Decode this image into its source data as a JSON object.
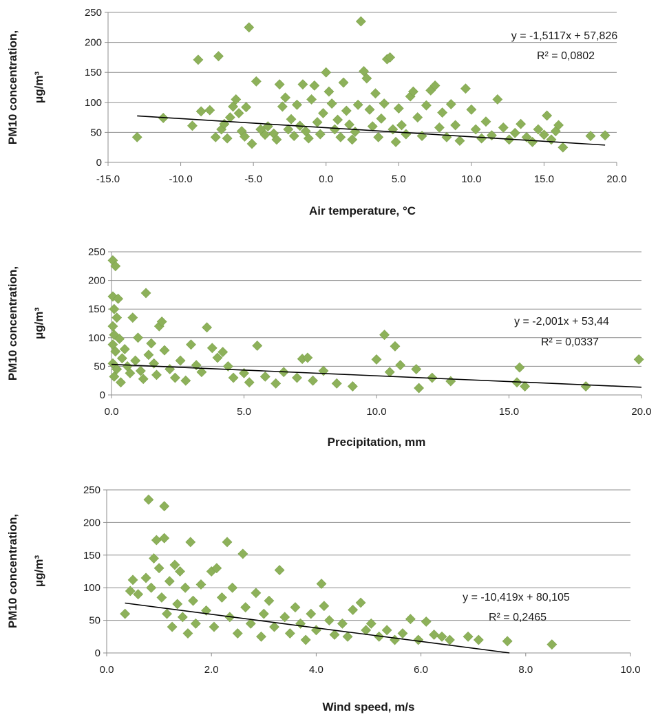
{
  "chart_data": [
    {
      "type": "scatter",
      "title": "",
      "xlabel": "Air temperature, °C",
      "ylabel_line1": "PM10 concentration,",
      "ylabel_line2": "μg/m³",
      "xlim": [
        -15,
        20
      ],
      "ylim": [
        0,
        250
      ],
      "x_ticks": [
        -15,
        -10,
        -5,
        0,
        5,
        10,
        15,
        20
      ],
      "x_tick_labels": [
        "-15.0",
        "-10.0",
        "-5.0",
        "0.0",
        "5.0",
        "10.0",
        "15.0",
        "20.0"
      ],
      "y_ticks": [
        0,
        50,
        100,
        150,
        200,
        250
      ],
      "y_tick_labels": [
        "0",
        "50",
        "100",
        "150",
        "200",
        "250"
      ],
      "grid": "horizontal",
      "marker_color": "#8db15a",
      "trendline": {
        "slope": -1.5117,
        "intercept": 57.826,
        "x_range": [
          -13.0,
          19.2
        ]
      },
      "equation": "y = -1,5117x + 57,826",
      "r_squared": "R² = 0,0802",
      "points": [
        [
          -13,
          42
        ],
        [
          -11.2,
          74
        ],
        [
          -9.2,
          61
        ],
        [
          -8.8,
          171
        ],
        [
          -8.6,
          85
        ],
        [
          -8,
          87
        ],
        [
          -7.6,
          42
        ],
        [
          -7.4,
          177
        ],
        [
          -7.2,
          55
        ],
        [
          -7,
          64
        ],
        [
          -6.8,
          40
        ],
        [
          -6.6,
          75
        ],
        [
          -6.4,
          93
        ],
        [
          -6.2,
          105
        ],
        [
          -6,
          82
        ],
        [
          -5.8,
          52
        ],
        [
          -5.6,
          43
        ],
        [
          -5.5,
          92
        ],
        [
          -5.3,
          225
        ],
        [
          -5.1,
          31
        ],
        [
          -4.8,
          135
        ],
        [
          -4.5,
          55
        ],
        [
          -4.2,
          46
        ],
        [
          -4,
          60
        ],
        [
          -3.6,
          48
        ],
        [
          -3.4,
          38
        ],
        [
          -3.2,
          130
        ],
        [
          -3,
          93
        ],
        [
          -2.8,
          108
        ],
        [
          -2.6,
          55
        ],
        [
          -2.4,
          72
        ],
        [
          -2.2,
          44
        ],
        [
          -2,
          96
        ],
        [
          -1.8,
          61
        ],
        [
          -1.6,
          130
        ],
        [
          -1.4,
          52
        ],
        [
          -1.2,
          40
        ],
        [
          -1,
          105
        ],
        [
          -0.8,
          128
        ],
        [
          -0.6,
          67
        ],
        [
          -0.4,
          47
        ],
        [
          -0.2,
          82
        ],
        [
          0,
          150
        ],
        [
          0.2,
          118
        ],
        [
          0.4,
          98
        ],
        [
          0.6,
          55
        ],
        [
          0.8,
          71
        ],
        [
          1,
          42
        ],
        [
          1.2,
          133
        ],
        [
          1.4,
          86
        ],
        [
          1.6,
          63
        ],
        [
          1.8,
          38
        ],
        [
          2,
          51
        ],
        [
          2.2,
          96
        ],
        [
          2.4,
          235
        ],
        [
          2.6,
          152
        ],
        [
          2.8,
          140
        ],
        [
          3,
          88
        ],
        [
          3.2,
          60
        ],
        [
          3.4,
          115
        ],
        [
          3.6,
          42
        ],
        [
          3.8,
          73
        ],
        [
          4,
          98
        ],
        [
          4.2,
          172
        ],
        [
          4.4,
          175
        ],
        [
          4.6,
          55
        ],
        [
          4.8,
          34
        ],
        [
          5,
          90
        ],
        [
          5.2,
          62
        ],
        [
          5.5,
          47
        ],
        [
          5.8,
          110
        ],
        [
          6,
          118
        ],
        [
          6.3,
          75
        ],
        [
          6.6,
          44
        ],
        [
          6.9,
          95
        ],
        [
          7.2,
          120
        ],
        [
          7.5,
          128
        ],
        [
          7.8,
          58
        ],
        [
          8,
          83
        ],
        [
          8.3,
          42
        ],
        [
          8.6,
          97
        ],
        [
          8.9,
          62
        ],
        [
          9.2,
          36
        ],
        [
          9.6,
          123
        ],
        [
          10,
          88
        ],
        [
          10.3,
          55
        ],
        [
          10.7,
          40
        ],
        [
          11,
          68
        ],
        [
          11.4,
          45
        ],
        [
          11.8,
          105
        ],
        [
          12.2,
          58
        ],
        [
          12.6,
          38
        ],
        [
          13,
          49
        ],
        [
          13.4,
          64
        ],
        [
          13.8,
          42
        ],
        [
          14.2,
          34
        ],
        [
          14.6,
          55
        ],
        [
          15,
          46
        ],
        [
          15.2,
          78
        ],
        [
          15.5,
          38
        ],
        [
          15.8,
          52
        ],
        [
          16,
          62
        ],
        [
          16.3,
          25
        ],
        [
          18.2,
          44
        ],
        [
          19.2,
          45
        ]
      ]
    },
    {
      "type": "scatter",
      "title": "",
      "xlabel": "Precipitation, mm",
      "ylabel_line1": "PM10 concentration,",
      "ylabel_line2": "μg/m³",
      "xlim": [
        0,
        20
      ],
      "ylim": [
        0,
        250
      ],
      "x_ticks": [
        0,
        5,
        10,
        15,
        20
      ],
      "x_tick_labels": [
        "0.0",
        "5.0",
        "10.0",
        "15.0",
        "20.0"
      ],
      "y_ticks": [
        0,
        50,
        100,
        150,
        200,
        250
      ],
      "y_tick_labels": [
        "0",
        "50",
        "100",
        "150",
        "200",
        "250"
      ],
      "grid": "horizontal",
      "marker_color": "#8db15a",
      "trendline": {
        "slope": -2.001,
        "intercept": 53.44,
        "x_range": [
          0,
          20
        ]
      },
      "equation": "y = -2,001x + 53,44",
      "r_squared": "R² = 0,0337",
      "points": [
        [
          0.05,
          235
        ],
        [
          0.15,
          225
        ],
        [
          0.05,
          172
        ],
        [
          0.25,
          168
        ],
        [
          0.1,
          150
        ],
        [
          0.2,
          135
        ],
        [
          0.05,
          120
        ],
        [
          0.1,
          105
        ],
        [
          0.3,
          98
        ],
        [
          0.05,
          88
        ],
        [
          0.15,
          76
        ],
        [
          0.4,
          64
        ],
        [
          0.05,
          55
        ],
        [
          0.2,
          45
        ],
        [
          0.1,
          32
        ],
        [
          0.35,
          22
        ],
        [
          0.5,
          80
        ],
        [
          0.6,
          50
        ],
        [
          0.7,
          38
        ],
        [
          0.8,
          135
        ],
        [
          0.9,
          60
        ],
        [
          1,
          100
        ],
        [
          1.1,
          42
        ],
        [
          1.2,
          28
        ],
        [
          1.3,
          178
        ],
        [
          1.4,
          70
        ],
        [
          1.5,
          90
        ],
        [
          1.6,
          55
        ],
        [
          1.7,
          35
        ],
        [
          1.8,
          120
        ],
        [
          1.9,
          128
        ],
        [
          2,
          78
        ],
        [
          2.2,
          45
        ],
        [
          2.4,
          30
        ],
        [
          2.6,
          60
        ],
        [
          2.8,
          25
        ],
        [
          3,
          88
        ],
        [
          3.2,
          52
        ],
        [
          3.4,
          40
        ],
        [
          3.6,
          118
        ],
        [
          3.8,
          82
        ],
        [
          4,
          65
        ],
        [
          4.2,
          75
        ],
        [
          4.4,
          50
        ],
        [
          4.6,
          30
        ],
        [
          5,
          38
        ],
        [
          5.2,
          22
        ],
        [
          5.5,
          86
        ],
        [
          5.8,
          32
        ],
        [
          6.2,
          20
        ],
        [
          6.5,
          40
        ],
        [
          7,
          30
        ],
        [
          7.2,
          63
        ],
        [
          7.4,
          65
        ],
        [
          7.6,
          25
        ],
        [
          8,
          42
        ],
        [
          8.5,
          20
        ],
        [
          9.1,
          15
        ],
        [
          10,
          62
        ],
        [
          10.3,
          105
        ],
        [
          10.5,
          40
        ],
        [
          10.7,
          85
        ],
        [
          10.9,
          52
        ],
        [
          11.5,
          45
        ],
        [
          11.6,
          12
        ],
        [
          12.1,
          30
        ],
        [
          12.8,
          24
        ],
        [
          15.3,
          22
        ],
        [
          15.4,
          48
        ],
        [
          15.6,
          15
        ],
        [
          17.9,
          15
        ],
        [
          19.9,
          62
        ]
      ]
    },
    {
      "type": "scatter",
      "title": "",
      "xlabel": "Wind speed, m/s",
      "ylabel_line1": "PM10 concentration,",
      "ylabel_line2": "μg/m³",
      "xlim": [
        0,
        10
      ],
      "ylim": [
        0,
        250
      ],
      "x_ticks": [
        0,
        2,
        4,
        6,
        8,
        10
      ],
      "x_tick_labels": [
        "0.0",
        "2.0",
        "4.0",
        "6.0",
        "8.0",
        "10.0"
      ],
      "y_ticks": [
        0,
        50,
        100,
        150,
        200,
        250
      ],
      "y_tick_labels": [
        "0",
        "50",
        "100",
        "150",
        "200",
        "250"
      ],
      "grid": "horizontal",
      "marker_color": "#8db15a",
      "trendline": {
        "slope": -10.419,
        "intercept": 80.105,
        "x_range": [
          0.35,
          7.69
        ]
      },
      "equation": "y = -10,419x + 80,105",
      "r_squared": "R² = 0,2465",
      "points": [
        [
          0.35,
          60
        ],
        [
          0.45,
          95
        ],
        [
          0.5,
          112
        ],
        [
          0.6,
          90
        ],
        [
          0.75,
          115
        ],
        [
          0.8,
          235
        ],
        [
          0.85,
          100
        ],
        [
          0.9,
          145
        ],
        [
          0.95,
          173
        ],
        [
          1,
          130
        ],
        [
          1.05,
          85
        ],
        [
          1.1,
          225
        ],
        [
          1.1,
          176
        ],
        [
          1.15,
          60
        ],
        [
          1.2,
          110
        ],
        [
          1.25,
          40
        ],
        [
          1.3,
          135
        ],
        [
          1.35,
          75
        ],
        [
          1.4,
          125
        ],
        [
          1.45,
          55
        ],
        [
          1.5,
          100
        ],
        [
          1.55,
          30
        ],
        [
          1.6,
          170
        ],
        [
          1.65,
          80
        ],
        [
          1.7,
          45
        ],
        [
          1.8,
          105
        ],
        [
          1.9,
          65
        ],
        [
          2,
          125
        ],
        [
          2.05,
          40
        ],
        [
          2.1,
          130
        ],
        [
          2.2,
          85
        ],
        [
          2.3,
          170
        ],
        [
          2.35,
          55
        ],
        [
          2.4,
          100
        ],
        [
          2.5,
          30
        ],
        [
          2.6,
          152
        ],
        [
          2.65,
          70
        ],
        [
          2.75,
          45
        ],
        [
          2.85,
          92
        ],
        [
          2.95,
          25
        ],
        [
          3,
          60
        ],
        [
          3.1,
          80
        ],
        [
          3.2,
          40
        ],
        [
          3.3,
          127
        ],
        [
          3.4,
          55
        ],
        [
          3.5,
          30
        ],
        [
          3.6,
          70
        ],
        [
          3.7,
          45
        ],
        [
          3.8,
          20
        ],
        [
          3.9,
          60
        ],
        [
          4,
          35
        ],
        [
          4.1,
          106
        ],
        [
          4.15,
          72
        ],
        [
          4.25,
          50
        ],
        [
          4.35,
          28
        ],
        [
          4.5,
          45
        ],
        [
          4.6,
          25
        ],
        [
          4.7,
          66
        ],
        [
          4.85,
          77
        ],
        [
          4.95,
          35
        ],
        [
          5.05,
          45
        ],
        [
          5.2,
          25
        ],
        [
          5.35,
          35
        ],
        [
          5.5,
          20
        ],
        [
          5.65,
          30
        ],
        [
          5.8,
          52
        ],
        [
          5.95,
          20
        ],
        [
          6.1,
          48
        ],
        [
          6.25,
          28
        ],
        [
          6.4,
          25
        ],
        [
          6.55,
          20
        ],
        [
          6.9,
          25
        ],
        [
          7.1,
          20
        ],
        [
          7.65,
          18
        ],
        [
          8.5,
          13
        ]
      ]
    }
  ]
}
